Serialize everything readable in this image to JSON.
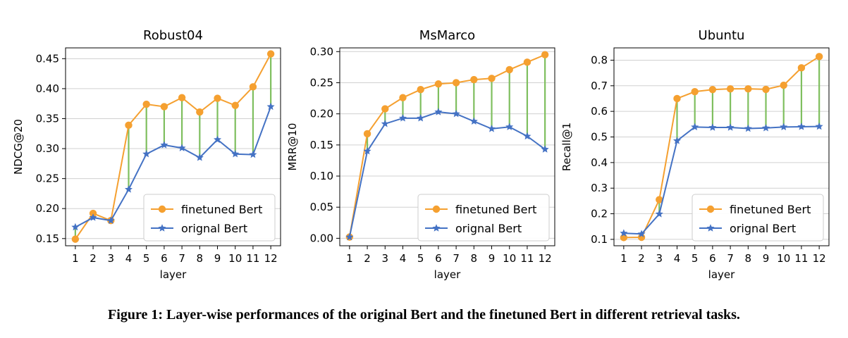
{
  "caption": "Figure 1: Layer-wise performances of the original Bert and the finetuned Bert in different retrieval tasks.",
  "colors": {
    "finetuned": "#f5a030",
    "original": "#4472c4",
    "gap": "#7fbf5f",
    "grid": "#d0d0d0"
  },
  "chart_data": [
    {
      "type": "line",
      "title": "Robust04",
      "xlabel": "layer",
      "ylabel": "NDCG@20",
      "x": [
        1,
        2,
        3,
        4,
        5,
        6,
        7,
        8,
        9,
        10,
        11,
        12
      ],
      "ylim": [
        0.138,
        0.468
      ],
      "yticks": [
        0.15,
        0.2,
        0.25,
        0.3,
        0.35,
        0.4,
        0.45
      ],
      "ytick_labels": [
        "0.15",
        "0.20",
        "0.25",
        "0.30",
        "0.35",
        "0.40",
        "0.45"
      ],
      "grid": true,
      "legend": "lower-right",
      "series": [
        {
          "name": "finetuned Bert",
          "marker": "circle",
          "values": [
            0.149,
            0.192,
            0.18,
            0.339,
            0.374,
            0.37,
            0.385,
            0.361,
            0.384,
            0.372,
            0.403,
            0.458
          ]
        },
        {
          "name": "orignal Bert",
          "marker": "star",
          "values": [
            0.169,
            0.185,
            0.18,
            0.232,
            0.291,
            0.306,
            0.301,
            0.285,
            0.315,
            0.291,
            0.29,
            0.37
          ]
        }
      ]
    },
    {
      "type": "line",
      "title": "MsMarco",
      "xlabel": "layer",
      "ylabel": "MRR@10",
      "x": [
        1,
        2,
        3,
        4,
        5,
        6,
        7,
        8,
        9,
        10,
        11,
        12
      ],
      "ylim": [
        -0.012,
        0.306
      ],
      "yticks": [
        0.0,
        0.05,
        0.1,
        0.15,
        0.2,
        0.25,
        0.3
      ],
      "ytick_labels": [
        "0.00",
        "0.05",
        "0.10",
        "0.15",
        "0.20",
        "0.25",
        "0.30"
      ],
      "grid": true,
      "legend": "lower-right",
      "series": [
        {
          "name": "finetuned Bert",
          "marker": "circle",
          "values": [
            0.002,
            0.168,
            0.208,
            0.226,
            0.239,
            0.248,
            0.25,
            0.255,
            0.257,
            0.271,
            0.283,
            0.295
          ]
        },
        {
          "name": "orignal Bert",
          "marker": "star",
          "values": [
            0.002,
            0.14,
            0.184,
            0.193,
            0.193,
            0.203,
            0.2,
            0.188,
            0.176,
            0.179,
            0.164,
            0.143
          ]
        }
      ]
    },
    {
      "type": "line",
      "title": "Ubuntu",
      "xlabel": "layer",
      "ylabel": "Recall@1",
      "x": [
        1,
        2,
        3,
        4,
        5,
        6,
        7,
        8,
        9,
        10,
        11,
        12
      ],
      "ylim": [
        0.075,
        0.848
      ],
      "yticks": [
        0.1,
        0.2,
        0.3,
        0.4,
        0.5,
        0.6,
        0.7,
        0.8
      ],
      "ytick_labels": [
        "0.1",
        "0.2",
        "0.3",
        "0.4",
        "0.5",
        "0.6",
        "0.7",
        "0.8"
      ],
      "grid": true,
      "legend": "lower-right",
      "series": [
        {
          "name": "finetuned Bert",
          "marker": "circle",
          "values": [
            0.107,
            0.108,
            0.255,
            0.65,
            0.677,
            0.685,
            0.688,
            0.688,
            0.686,
            0.702,
            0.77,
            0.814
          ]
        },
        {
          "name": "orignal Bert",
          "marker": "star",
          "values": [
            0.124,
            0.121,
            0.199,
            0.485,
            0.539,
            0.537,
            0.537,
            0.533,
            0.535,
            0.539,
            0.54,
            0.541
          ]
        }
      ]
    }
  ]
}
